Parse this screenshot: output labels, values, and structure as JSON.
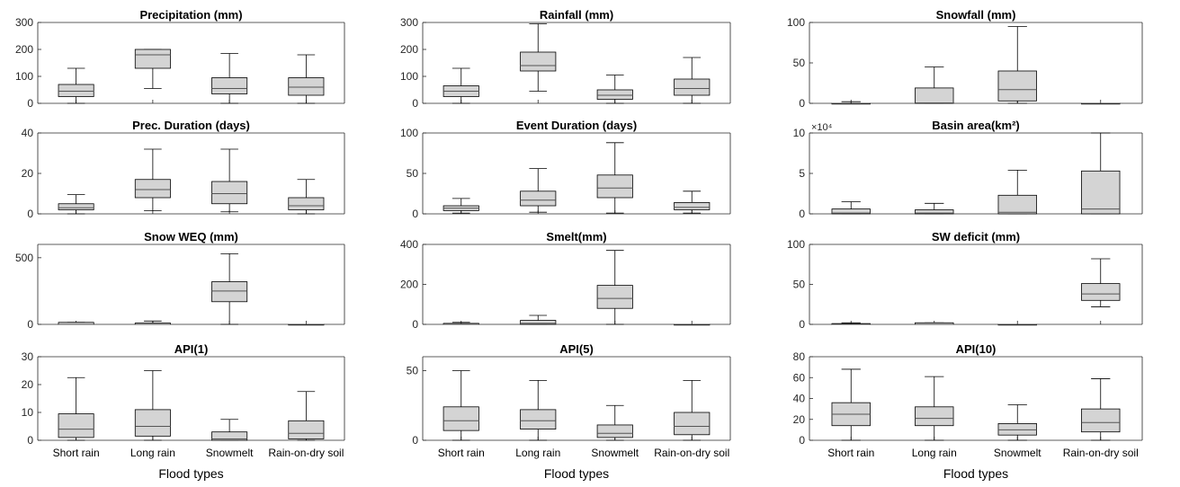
{
  "figure": {
    "xlabel": "Flood types",
    "categories": [
      "Short rain",
      "Long rain",
      "Snowmelt",
      "Rain-on-dry soil"
    ],
    "colors": {
      "box": "#d4d4d4",
      "line": "#000000",
      "axis": "#262626",
      "text": "#000000",
      "faint": "#bdbdbd"
    }
  },
  "chart_data": [
    {
      "type": "box",
      "title": "Precipitation (mm)",
      "ylim": [
        0,
        300
      ],
      "yticks": [
        0,
        100,
        200,
        300
      ],
      "categories": [
        "Short rain",
        "Long rain",
        "Snowmelt",
        "Rain-on-dry soil"
      ],
      "boxes": [
        {
          "whislo": 0,
          "q1": 25,
          "med": 45,
          "q3": 70,
          "whishi": 130
        },
        {
          "whislo": 55,
          "q1": 130,
          "med": 180,
          "q3": 200,
          "whishi": 200
        },
        {
          "whislo": 0,
          "q1": 35,
          "med": 55,
          "q3": 95,
          "whishi": 185
        },
        {
          "whislo": 0,
          "q1": 30,
          "med": 60,
          "q3": 95,
          "whishi": 180
        }
      ]
    },
    {
      "type": "box",
      "title": "Rainfall (mm)",
      "ylim": [
        0,
        300
      ],
      "yticks": [
        0,
        100,
        200,
        300
      ],
      "categories": [
        "Short rain",
        "Long rain",
        "Snowmelt",
        "Rain-on-dry soil"
      ],
      "boxes": [
        {
          "whislo": 0,
          "q1": 25,
          "med": 45,
          "q3": 65,
          "whishi": 130
        },
        {
          "whislo": 45,
          "q1": 120,
          "med": 140,
          "q3": 190,
          "whishi": 295
        },
        {
          "whislo": 0,
          "q1": 15,
          "med": 30,
          "q3": 50,
          "whishi": 105
        },
        {
          "whislo": 0,
          "q1": 30,
          "med": 55,
          "q3": 90,
          "whishi": 170
        }
      ]
    },
    {
      "type": "box",
      "title": "Snowfall (mm)",
      "ylim": [
        0,
        100
      ],
      "yticks": [
        0,
        50,
        100
      ],
      "categories": [
        "Short rain",
        "Long rain",
        "Snowmelt",
        "Rain-on-dry soil"
      ],
      "boxes": [
        {
          "whislo": 0,
          "q1": 0,
          "med": 0,
          "q3": 0,
          "whishi": 2
        },
        {
          "whislo": 0,
          "q1": 0,
          "med": 0.5,
          "q3": 19,
          "whishi": 45
        },
        {
          "whislo": 0,
          "q1": 3,
          "med": 17,
          "q3": 40,
          "whishi": 95
        },
        {
          "whislo": 0,
          "q1": 0,
          "med": 0,
          "q3": 0,
          "whishi": 0
        }
      ]
    },
    {
      "type": "box",
      "title": "Prec. Duration (days)",
      "ylim": [
        0,
        40
      ],
      "yticks": [
        0,
        20,
        40
      ],
      "categories": [
        "Short rain",
        "Long rain",
        "Snowmelt",
        "Rain-on-dry soil"
      ],
      "boxes": [
        {
          "whislo": 0,
          "q1": 2,
          "med": 3,
          "q3": 5,
          "whishi": 9.5
        },
        {
          "whislo": 1.5,
          "q1": 8,
          "med": 12,
          "q3": 17,
          "whishi": 32
        },
        {
          "whislo": 1,
          "q1": 5,
          "med": 10,
          "q3": 16,
          "whishi": 32
        },
        {
          "whislo": 0,
          "q1": 2,
          "med": 4,
          "q3": 8,
          "whishi": 17
        }
      ]
    },
    {
      "type": "box",
      "title": "Event Duration (days)",
      "ylim": [
        0,
        100
      ],
      "yticks": [
        0,
        50,
        100
      ],
      "categories": [
        "Short rain",
        "Long rain",
        "Snowmelt",
        "Rain-on-dry soil"
      ],
      "boxes": [
        {
          "whislo": 1,
          "q1": 4,
          "med": 7,
          "q3": 10,
          "whishi": 19
        },
        {
          "whislo": 2,
          "q1": 10,
          "med": 17,
          "q3": 28,
          "whishi": 56
        },
        {
          "whislo": 1,
          "q1": 20,
          "med": 32,
          "q3": 48,
          "whishi": 88
        },
        {
          "whislo": 1,
          "q1": 5,
          "med": 8,
          "q3": 14,
          "whishi": 28
        }
      ]
    },
    {
      "type": "box",
      "title": "Basin area(km²)",
      "ylim": [
        0,
        10
      ],
      "yticks": [
        0,
        5,
        10
      ],
      "y_multiplier": "×10⁴",
      "categories": [
        "Short rain",
        "Long rain",
        "Snowmelt",
        "Rain-on-dry soil"
      ],
      "boxes": [
        {
          "whislo": 0,
          "q1": 0,
          "med": 0.1,
          "q3": 0.6,
          "whishi": 1.5
        },
        {
          "whislo": 0,
          "q1": 0,
          "med": 0.1,
          "q3": 0.5,
          "whishi": 1.3
        },
        {
          "whislo": 0,
          "q1": 0,
          "med": 0.2,
          "q3": 2.3,
          "whishi": 5.4
        },
        {
          "whislo": 0,
          "q1": 0,
          "med": 0.6,
          "q3": 5.3,
          "whishi": 10
        }
      ]
    },
    {
      "type": "box",
      "title": "Snow WEQ (mm)",
      "ylim": [
        0,
        600
      ],
      "yticks": [
        0,
        500
      ],
      "categories": [
        "Short rain",
        "Long rain",
        "Snowmelt",
        "Rain-on-dry soil"
      ],
      "boxes": [
        {
          "whislo": 0,
          "q1": 0,
          "med": 0,
          "q3": 15,
          "whishi": 15
        },
        {
          "whislo": 0,
          "q1": 0,
          "med": 0,
          "q3": 10,
          "whishi": 25
        },
        {
          "whislo": 0,
          "q1": 170,
          "med": 250,
          "q3": 320,
          "whishi": 530
        },
        {
          "whislo": 0,
          "q1": 0,
          "med": 0,
          "q3": 0,
          "whishi": 0
        }
      ]
    },
    {
      "type": "box",
      "title": "Smelt(mm)",
      "ylim": [
        0,
        400
      ],
      "yticks": [
        0,
        200,
        400
      ],
      "categories": [
        "Short rain",
        "Long rain",
        "Snowmelt",
        "Rain-on-dry soil"
      ],
      "boxes": [
        {
          "whislo": 0,
          "q1": 0,
          "med": 0,
          "q3": 5,
          "whishi": 10
        },
        {
          "whislo": 0,
          "q1": 0,
          "med": 5,
          "q3": 20,
          "whishi": 45
        },
        {
          "whislo": 0,
          "q1": 80,
          "med": 130,
          "q3": 195,
          "whishi": 370
        },
        {
          "whislo": 0,
          "q1": 0,
          "med": 0,
          "q3": 0,
          "whishi": 0
        }
      ]
    },
    {
      "type": "box",
      "title": "SW deficit (mm)",
      "ylim": [
        0,
        100
      ],
      "yticks": [
        0,
        50,
        100
      ],
      "categories": [
        "Short rain",
        "Long rain",
        "Snowmelt",
        "Rain-on-dry soil"
      ],
      "boxes": [
        {
          "whislo": 0,
          "q1": 0,
          "med": 0,
          "q3": 1,
          "whishi": 2
        },
        {
          "whislo": 0,
          "q1": 0,
          "med": 0,
          "q3": 2,
          "whishi": 2
        },
        {
          "whislo": 0,
          "q1": 0,
          "med": 0,
          "q3": 0,
          "whishi": 0
        },
        {
          "whislo": 22,
          "q1": 30,
          "med": 38,
          "q3": 51,
          "whishi": 82
        }
      ]
    },
    {
      "type": "box",
      "title": "API(1)",
      "ylim": [
        0,
        30
      ],
      "yticks": [
        0,
        10,
        20,
        30
      ],
      "categories": [
        "Short rain",
        "Long rain",
        "Snowmelt",
        "Rain-on-dry soil"
      ],
      "boxes": [
        {
          "whislo": 0,
          "q1": 1,
          "med": 4,
          "q3": 9.5,
          "whishi": 22.5
        },
        {
          "whislo": 0,
          "q1": 1.5,
          "med": 5,
          "q3": 11,
          "whishi": 25
        },
        {
          "whislo": 0,
          "q1": 0,
          "med": 0.5,
          "q3": 3,
          "whishi": 7.5
        },
        {
          "whislo": 0,
          "q1": 0.5,
          "med": 2.5,
          "q3": 7,
          "whishi": 17.5
        }
      ]
    },
    {
      "type": "box",
      "title": "API(5)",
      "ylim": [
        0,
        60
      ],
      "yticks": [
        0,
        50
      ],
      "categories": [
        "Short rain",
        "Long rain",
        "Snowmelt",
        "Rain-on-dry soil"
      ],
      "boxes": [
        {
          "whislo": 0,
          "q1": 7,
          "med": 14,
          "q3": 24,
          "whishi": 50
        },
        {
          "whislo": 0,
          "q1": 8,
          "med": 14,
          "q3": 22,
          "whishi": 43
        },
        {
          "whislo": 0,
          "q1": 2,
          "med": 5,
          "q3": 11,
          "whishi": 25
        },
        {
          "whislo": 0,
          "q1": 4,
          "med": 10,
          "q3": 20,
          "whishi": 43
        }
      ]
    },
    {
      "type": "box",
      "title": "API(10)",
      "ylim": [
        0,
        80
      ],
      "yticks": [
        0,
        20,
        40,
        60,
        80
      ],
      "categories": [
        "Short rain",
        "Long rain",
        "Snowmelt",
        "Rain-on-dry soil"
      ],
      "boxes": [
        {
          "whislo": 0,
          "q1": 14,
          "med": 25,
          "q3": 36,
          "whishi": 68
        },
        {
          "whislo": 0,
          "q1": 14,
          "med": 21,
          "q3": 32,
          "whishi": 61
        },
        {
          "whislo": 0,
          "q1": 5,
          "med": 10,
          "q3": 16,
          "whishi": 34
        },
        {
          "whislo": 0,
          "q1": 8,
          "med": 17,
          "q3": 30,
          "whishi": 59
        }
      ]
    }
  ]
}
